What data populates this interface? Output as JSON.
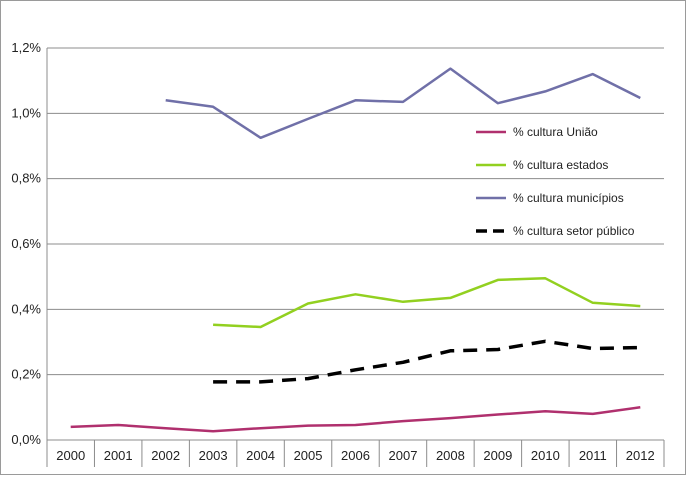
{
  "chart_data": {
    "type": "line",
    "title": "",
    "xlabel": "",
    "ylabel": "",
    "x": [
      "2000",
      "2001",
      "2002",
      "2003",
      "2004",
      "2005",
      "2006",
      "2007",
      "2008",
      "2009",
      "2010",
      "2011",
      "2012"
    ],
    "yticks": [
      "0,0%",
      "0,2%",
      "0,4%",
      "0,6%",
      "0,8%",
      "1,0%",
      "1,2%"
    ],
    "ylim": [
      0,
      1.2
    ],
    "grid": "horizontal",
    "legend_position": "right",
    "series": [
      {
        "name": "% cultura União",
        "color": "#b0306e",
        "dash": "solid",
        "values": [
          0.04,
          0.046,
          0.036,
          0.027,
          0.036,
          0.044,
          0.046,
          0.058,
          0.067,
          0.078,
          0.088,
          0.08,
          0.1
        ]
      },
      {
        "name": "% cultura estados",
        "color": "#92d020",
        "dash": "solid",
        "values": [
          null,
          null,
          null,
          0.353,
          0.346,
          0.418,
          0.446,
          0.423,
          0.435,
          0.49,
          0.495,
          0.42,
          0.41
        ]
      },
      {
        "name": "% cultura municípios",
        "color": "#7070a8",
        "dash": "solid",
        "values": [
          null,
          null,
          1.04,
          1.02,
          0.925,
          0.983,
          1.04,
          1.035,
          1.137,
          1.031,
          1.067,
          1.12,
          1.047
        ]
      },
      {
        "name": "% cultura setor público",
        "color": "#000000",
        "dash": "dashed",
        "values": [
          null,
          null,
          null,
          0.178,
          0.178,
          0.188,
          0.215,
          0.238,
          0.273,
          0.277,
          0.302,
          0.28,
          0.283
        ]
      }
    ]
  }
}
